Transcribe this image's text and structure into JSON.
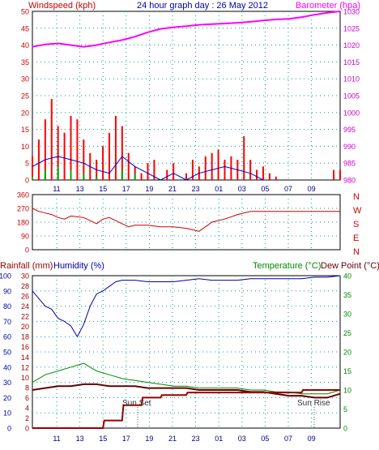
{
  "chart_data": [
    {
      "type": "line",
      "title": "24 hour graph day : 26 May 2012",
      "left_axis_label": "Windspeed (kph)",
      "right_axis_label": "Barometer (hpa)",
      "ylim_left": [
        0,
        50
      ],
      "ylim_right": [
        980,
        1030
      ],
      "y_ticks_left": [
        "0",
        "5",
        "10",
        "15",
        "20",
        "25",
        "30",
        "35",
        "40",
        "45",
        "50"
      ],
      "y_ticks_right": [
        "980",
        "985",
        "990",
        "995",
        "1000",
        "1005",
        "1010",
        "1015",
        "1020",
        "1025",
        "1030"
      ],
      "x_ticks": [
        "11",
        "13",
        "15",
        "17",
        "19",
        "21",
        "23",
        "01",
        "03",
        "05",
        "07",
        "09"
      ],
      "grid": true,
      "colors": {
        "windspeed": "#ff0000",
        "gust_avg": "#0000cc",
        "calm": "#00aa00",
        "barometer": "#ff00ff"
      },
      "series": [
        {
          "key": "barometer",
          "x": [
            0,
            1,
            2,
            3,
            4,
            5,
            6,
            7,
            8,
            9,
            10,
            11,
            12,
            13,
            14,
            15,
            16,
            17,
            18,
            19,
            20,
            21,
            22,
            23,
            24
          ],
          "values": [
            1019.5,
            1020.2,
            1020.5,
            1020.0,
            1019.5,
            1020.0,
            1020.8,
            1021.5,
            1022.5,
            1023.8,
            1024.8,
            1025.3,
            1025.6,
            1026.0,
            1026.2,
            1026.4,
            1026.6,
            1026.9,
            1027.3,
            1027.6,
            1027.8,
            1028.3,
            1029.0,
            1029.6,
            1030.0
          ]
        },
        {
          "key": "windspeed",
          "x": [
            0,
            0.5,
            1,
            1.5,
            2,
            2.5,
            3,
            3.5,
            4,
            4.5,
            5,
            5.5,
            6,
            6.5,
            7,
            7.5,
            8,
            8.5,
            9,
            9.5,
            10,
            10.5,
            11,
            11.5,
            12,
            12.5,
            13,
            13.5,
            14,
            14.5,
            15,
            15.5,
            16,
            16.5,
            17,
            17.5,
            18,
            18.5,
            19,
            20,
            21,
            22,
            23,
            23.5,
            24
          ],
          "values": [
            7,
            12,
            18,
            24,
            16,
            14,
            19,
            18,
            12,
            8,
            6,
            10,
            14,
            19,
            16,
            8,
            4,
            2,
            5,
            6,
            0,
            3,
            5,
            0,
            2,
            6,
            4,
            7,
            8,
            9,
            6,
            7,
            6,
            13,
            6,
            3,
            4,
            2,
            1,
            0,
            0,
            0,
            0,
            3,
            3
          ]
        },
        {
          "key": "gust_avg",
          "x": [
            0,
            1,
            2,
            3,
            4,
            5,
            6,
            7,
            8,
            9,
            10,
            11,
            12,
            13,
            14,
            15,
            16,
            17,
            18
          ],
          "values": [
            4,
            6,
            7,
            6,
            5,
            3,
            2,
            7,
            4,
            2,
            0,
            2,
            0,
            2,
            3,
            4,
            3,
            2,
            0
          ]
        },
        {
          "key": "calm",
          "x": [
            0,
            1,
            2,
            3,
            4,
            5,
            6,
            7,
            8,
            9
          ],
          "values": [
            1,
            3,
            4,
            3,
            2,
            1,
            0,
            3,
            2,
            0
          ]
        }
      ]
    },
    {
      "type": "line",
      "ylim": [
        0,
        360
      ],
      "y_ticks": [
        "0",
        "90",
        "180",
        "270",
        "360"
      ],
      "compass_labels": [
        "N",
        "W",
        "S",
        "E",
        "N"
      ],
      "x_ticks": [
        "11",
        "13",
        "15",
        "17",
        "19",
        "21",
        "23",
        "01",
        "03",
        "05",
        "07",
        "09"
      ],
      "grid": true,
      "color": "#cc0000",
      "series": [
        {
          "key": "wind_direction",
          "x": [
            0,
            0.5,
            1,
            1.5,
            2,
            2.5,
            3,
            3.5,
            4,
            4.5,
            5,
            5.5,
            6,
            6.5,
            7,
            7.5,
            8,
            9,
            10,
            11,
            12,
            12.5,
            13,
            14,
            15,
            16,
            17,
            18,
            19,
            20,
            21,
            22,
            23,
            24
          ],
          "values": [
            270,
            250,
            240,
            230,
            210,
            200,
            220,
            215,
            210,
            190,
            170,
            200,
            210,
            190,
            170,
            150,
            160,
            160,
            150,
            150,
            140,
            130,
            120,
            180,
            200,
            230,
            250,
            250,
            250,
            250,
            250,
            250,
            250,
            250
          ]
        }
      ]
    },
    {
      "type": "line",
      "left_axis_label_1": "Rainfall (mm)",
      "left_axis_label_2": "Humidity (%)",
      "right_axis_label_1": "Temperature (°C)",
      "right_axis_label_2": "Dew Point (°C)",
      "ylim_humidity": [
        0,
        100
      ],
      "ylim_rain": [
        0,
        30
      ],
      "ylim_temp": [
        0,
        40
      ],
      "y_ticks_humidity": [
        "0",
        "10",
        "20",
        "30",
        "40",
        "50",
        "60",
        "70",
        "80",
        "90",
        "100"
      ],
      "y_ticks_rain": [
        "0",
        "2",
        "4",
        "6",
        "8",
        "10",
        "12",
        "14",
        "16",
        "18",
        "20",
        "22",
        "24",
        "26",
        "28",
        "30"
      ],
      "y_ticks_temp": [
        "0",
        "5",
        "10",
        "15",
        "20",
        "25",
        "30",
        "35",
        "40"
      ],
      "x_ticks": [
        "11",
        "13",
        "15",
        "17",
        "19",
        "21",
        "23",
        "01",
        "03",
        "05",
        "07",
        "09"
      ],
      "annotations": [
        "Sun Set",
        "Sun Rise"
      ],
      "grid": true,
      "colors": {
        "humidity": "#0000aa",
        "temperature": "#008800",
        "dewpoint": "#660000",
        "rainfall": "#990000"
      },
      "series": [
        {
          "key": "humidity",
          "x": [
            0,
            0.5,
            1,
            1.5,
            2,
            2.5,
            3,
            3.5,
            4,
            4.5,
            5,
            5.5,
            6,
            6.5,
            7,
            8,
            9,
            10,
            11,
            12,
            13,
            14,
            15,
            16,
            17,
            18,
            19,
            20,
            21,
            22,
            23,
            24
          ],
          "values": [
            90,
            85,
            80,
            78,
            72,
            70,
            67,
            60,
            68,
            80,
            88,
            90,
            93,
            96,
            97,
            97,
            96,
            96,
            96,
            97,
            98,
            97,
            97,
            97,
            98,
            98,
            98,
            98,
            98,
            99,
            99,
            100
          ]
        },
        {
          "key": "temperature",
          "x": [
            0,
            1,
            2,
            3,
            4,
            5,
            6,
            7,
            8,
            9,
            10,
            11,
            12,
            13,
            14,
            15,
            16,
            17,
            18,
            19,
            20,
            21,
            22,
            23,
            24
          ],
          "values": [
            12,
            14,
            15,
            16,
            17,
            15,
            14,
            13,
            12.5,
            12,
            11.5,
            11,
            11,
            10.5,
            10.5,
            10.5,
            10.5,
            10,
            10,
            9.5,
            9.5,
            9,
            9,
            9,
            10
          ]
        },
        {
          "key": "dewpoint",
          "x": [
            0,
            1,
            2,
            3,
            4,
            5,
            6,
            7,
            8,
            9,
            10,
            11,
            12,
            13,
            14,
            15,
            16,
            17,
            18,
            19,
            20,
            21,
            22,
            23,
            24
          ],
          "values": [
            10,
            10.5,
            11,
            11,
            11.5,
            11.5,
            11,
            11,
            11,
            10.5,
            10.5,
            10.5,
            10.5,
            10,
            10,
            10,
            10,
            9.5,
            9.5,
            9,
            8.5,
            8.5,
            8,
            8,
            9
          ]
        },
        {
          "key": "rainfall",
          "x": [
            0,
            5.5,
            5.6,
            7.0,
            7.1,
            8.5,
            8.6,
            10.0,
            10.1,
            12.0,
            12.1,
            21.0,
            21.1,
            24
          ],
          "values": [
            0,
            0,
            1.5,
            1.5,
            4.5,
            4.5,
            6.0,
            6.0,
            6.5,
            6.5,
            7.0,
            7.0,
            7.5,
            7.5
          ]
        }
      ]
    }
  ]
}
